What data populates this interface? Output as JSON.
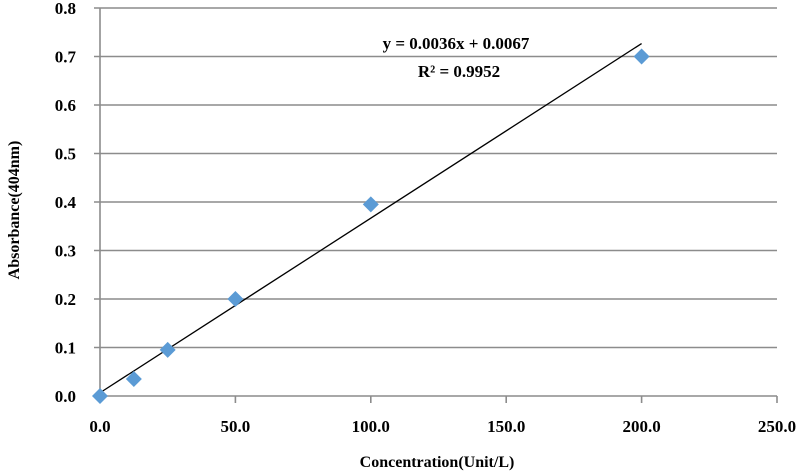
{
  "chart_data": {
    "type": "scatter",
    "title": "",
    "xlabel": "Concentration(Unit/L)",
    "ylabel": "Absorbance(404nm)",
    "xlim": [
      0,
      250
    ],
    "ylim": [
      0,
      0.8
    ],
    "x_ticks": [
      "0.0",
      "50.0",
      "100.0",
      "150.0",
      "200.0",
      "250.0"
    ],
    "y_ticks": [
      "0.0",
      "0.1",
      "0.2",
      "0.3",
      "0.4",
      "0.5",
      "0.6",
      "0.7",
      "0.8"
    ],
    "grid": {
      "horizontal": true,
      "vertical": false
    },
    "legend": null,
    "series": [
      {
        "name": "Absorbance",
        "marker": "diamond",
        "color": "#5B9BD5",
        "x": [
          0,
          12.5,
          25,
          50,
          100,
          200
        ],
        "y": [
          0.0,
          0.035,
          0.095,
          0.2,
          0.395,
          0.7
        ]
      }
    ],
    "trendline": {
      "type": "linear",
      "slope": 0.0036,
      "intercept": 0.0067,
      "x_range": [
        0,
        200
      ],
      "color": "#000000",
      "style": "dotted-solid"
    },
    "annotations": [
      {
        "text": "y = 0.0036x + 0.0067"
      },
      {
        "text": "R² = 0.9952"
      }
    ]
  },
  "labels": {
    "equation": "y = 0.0036x + 0.0067",
    "r_squared": "R² = 0.9952",
    "xlabel": "Concentration(Unit/L)",
    "ylabel": "Absorbance(404nm)"
  },
  "colors": {
    "marker": "#5B9BD5",
    "grid": "#8C8C8C",
    "axis": "#8C8C8C",
    "trendline": "#000000"
  }
}
